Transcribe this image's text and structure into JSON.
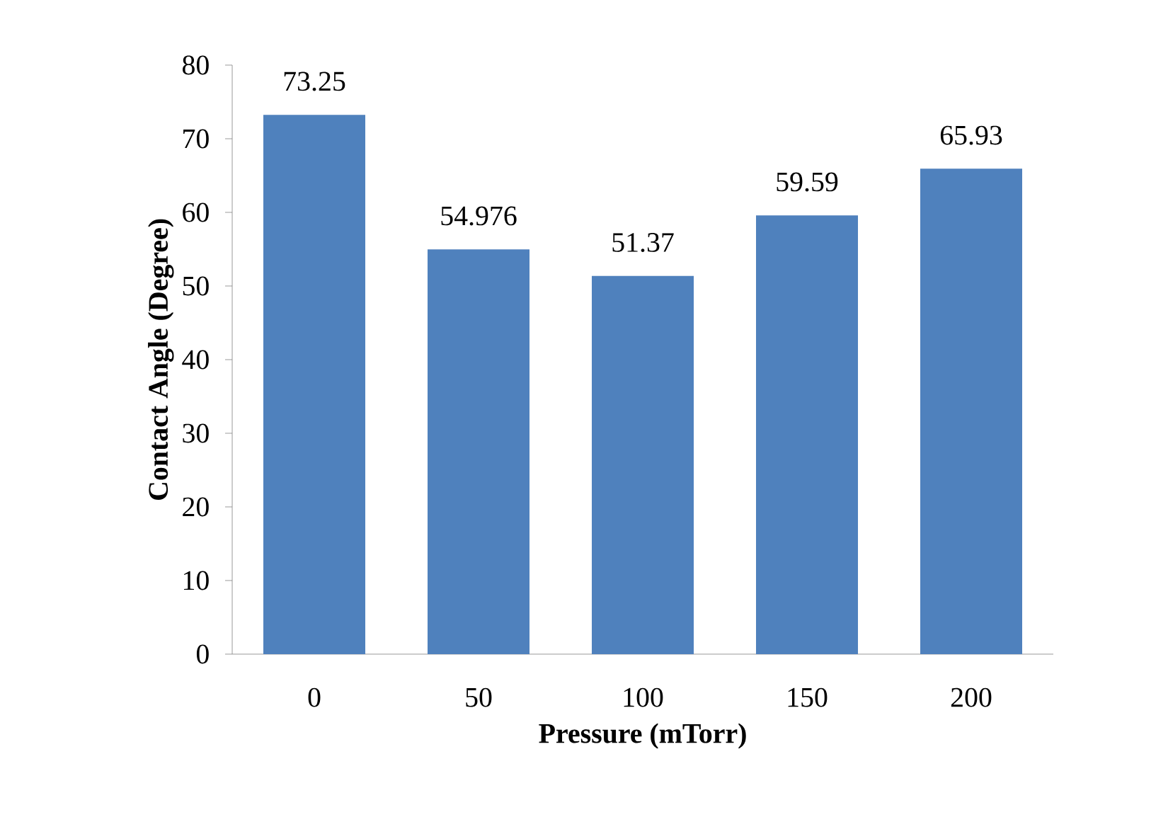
{
  "chart_data": {
    "type": "bar",
    "xlabel": "Pressure (mTorr)",
    "ylabel": "Contact Angle (Degree)",
    "categories": [
      "0",
      "50",
      "100",
      "150",
      "200"
    ],
    "values": [
      73.25,
      54.976,
      51.37,
      59.59,
      65.93
    ],
    "color": "#4f81bd",
    "ylim": [
      0,
      80
    ],
    "yticks": [
      0,
      10,
      20,
      30,
      40,
      50,
      60,
      70,
      80
    ],
    "data_labels": true,
    "grid": false
  }
}
